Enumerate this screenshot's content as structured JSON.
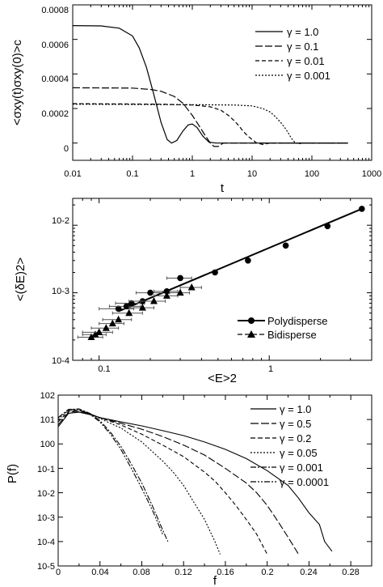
{
  "chart_data": [
    {
      "type": "line",
      "xlabel": "t",
      "ylabel": "<σxy(t)σxy(0)>c",
      "x_scale": "log",
      "xlim": [
        0.01,
        1000
      ],
      "ylim": [
        -0.0001,
        0.0008
      ],
      "x_ticks": [
        "0.01",
        "0.1",
        "1",
        "10",
        "100",
        "1000"
      ],
      "y_ticks": [
        "0",
        "0.0002",
        "0.0004",
        "0.0006",
        "0.0008"
      ],
      "y_tick_values": [
        0,
        0.0002,
        0.0004,
        0.0006,
        0.0008
      ],
      "legend_position": "top-right",
      "series": [
        {
          "name": "γ = 1.0",
          "dash": "solid",
          "x": [
            0.01,
            0.03,
            0.06,
            0.1,
            0.13,
            0.17,
            0.22,
            0.3,
            0.38,
            0.45,
            0.55,
            0.7,
            0.85,
            1.0,
            1.2,
            1.5,
            1.9,
            2.5,
            3.5,
            5,
            8,
            15,
            30,
            80,
            200,
            400
          ],
          "y": [
            0.00068,
            0.000678,
            0.000665,
            0.00062,
            0.00055,
            0.00044,
            0.0003,
            0.00012,
            2e-05,
            0.0,
            1.5e-05,
            7e-05,
            0.000105,
            0.00011,
            9e-05,
            4e-05,
            5e-06,
            0.0,
            0.0,
            0.0,
            0.0,
            0.0,
            0.0,
            0.0,
            0.0,
            0.0
          ]
        },
        {
          "name": "γ = 0.1",
          "dash": "longdash",
          "x": [
            0.01,
            0.1,
            0.2,
            0.3,
            0.5,
            0.7,
            1.0,
            1.3,
            1.6,
            2.0,
            2.3,
            2.7,
            3.3,
            4.5,
            7,
            15,
            50,
            400
          ],
          "y": [
            0.00032,
            0.000318,
            0.00031,
            0.0003,
            0.00027,
            0.00023,
            0.00016,
            0.0001,
            5e-05,
            0.0,
            -2e-05,
            -2e-05,
            0.0,
            0.0,
            0.0,
            0.0,
            0.0,
            0.0
          ]
        },
        {
          "name": "γ = 0.01",
          "dash": "dash",
          "x": [
            0.01,
            0.3,
            1,
            2,
            3,
            4,
            5,
            6,
            7,
            8.5,
            10,
            12,
            15,
            20,
            30,
            60,
            400
          ],
          "y": [
            0.000228,
            0.000225,
            0.00022,
            0.00021,
            0.00019,
            0.00016,
            0.00013,
            0.0001,
            7e-05,
            4e-05,
            2e-05,
            0.0,
            -8e-06,
            0.0,
            0.0,
            0.0,
            0.0
          ]
        },
        {
          "name": "γ = 0.001",
          "dash": "dot",
          "x": [
            0.01,
            1,
            5,
            10,
            15,
            20,
            25,
            30,
            35,
            40,
            45,
            50,
            55,
            60,
            70,
            80,
            100,
            200,
            400
          ],
          "y": [
            0.000225,
            0.000222,
            0.00022,
            0.000215,
            0.0002,
            0.00018,
            0.00015,
            0.00012,
            9e-05,
            6e-05,
            3e-05,
            1e-05,
            0.0,
            -5e-06,
            0.0,
            0.0,
            0.0,
            0.0,
            0.0
          ]
        }
      ]
    },
    {
      "type": "scatter",
      "xlabel": "<E>2",
      "ylabel": "<(δE)2>",
      "x_scale": "log",
      "y_scale": "log",
      "xlim": [
        0.07,
        4
      ],
      "ylim": [
        0.0001,
        0.025
      ],
      "x_ticks": [
        "0.1",
        "1"
      ],
      "y_ticks": [
        "10-4",
        "10-3",
        "10-2"
      ],
      "legend_position": "bottom-right",
      "fit_line": {
        "x": [
          0.13,
          3.5
        ],
        "y": [
          0.00053,
          0.0175
        ]
      },
      "series": [
        {
          "name": "Polydisperse",
          "marker": "circle",
          "x": [
            0.13,
            0.145,
            0.155,
            0.18,
            0.2,
            0.25,
            0.3,
            0.48,
            0.75,
            1.25,
            2.2,
            3.5
          ],
          "y": [
            0.00058,
            0.00063,
            0.0007,
            0.00075,
            0.001,
            0.00105,
            0.00165,
            0.002,
            0.003,
            0.005,
            0.0097,
            0.0175
          ],
          "xerr": [
            0.03,
            0.03,
            0.03,
            0.03,
            0.035,
            0.04,
            0.05,
            0,
            0,
            0,
            0,
            0
          ]
        },
        {
          "name": "Bidisperse",
          "marker": "triangle",
          "x": [
            0.09,
            0.095,
            0.1,
            0.11,
            0.12,
            0.13,
            0.15,
            0.18,
            0.21,
            0.25,
            0.3,
            0.35
          ],
          "y": [
            0.00022,
            0.00024,
            0.00026,
            0.0003,
            0.00035,
            0.0004,
            0.0005,
            0.0006,
            0.00075,
            0.0009,
            0.001,
            0.0012
          ],
          "xerr": [
            0.015,
            0.015,
            0.02,
            0.02,
            0.02,
            0.025,
            0.03,
            0.03,
            0.035,
            0.04,
            0.04,
            0.05
          ]
        }
      ]
    },
    {
      "type": "line",
      "xlabel": "f",
      "ylabel": "P(f)",
      "y_scale": "log",
      "xlim": [
        0,
        0.3
      ],
      "ylim": [
        1e-05,
        100
      ],
      "x_ticks": [
        "0",
        "0.04",
        "0.08",
        "0.12",
        "0.16",
        "0.2",
        "0.24",
        "0.28"
      ],
      "x_tick_values": [
        0,
        0.04,
        0.08,
        0.12,
        0.16,
        0.2,
        0.24,
        0.28
      ],
      "y_ticks": [
        "10-5",
        "10-4",
        "10-3",
        "10-2",
        "10-1",
        "100",
        "101",
        "102"
      ],
      "legend_position": "top-right",
      "series": [
        {
          "name": "γ = 1.0",
          "dash": "solid",
          "x": [
            0.0,
            0.01,
            0.02,
            0.03,
            0.04,
            0.06,
            0.08,
            0.1,
            0.12,
            0.14,
            0.16,
            0.18,
            0.2,
            0.22,
            0.23,
            0.24,
            0.25,
            0.255,
            0.262
          ],
          "y": [
            5,
            18,
            20,
            16,
            12,
            8,
            5.5,
            3.5,
            2.2,
            1.2,
            0.6,
            0.25,
            0.08,
            0.02,
            0.006,
            0.0015,
            0.0005,
            0.0001,
            4e-05
          ]
        },
        {
          "name": "γ = 0.5",
          "dash": "longdash",
          "x": [
            0.0,
            0.01,
            0.02,
            0.03,
            0.04,
            0.06,
            0.08,
            0.1,
            0.12,
            0.14,
            0.16,
            0.18,
            0.19,
            0.2,
            0.21,
            0.22,
            0.23
          ],
          "y": [
            6,
            20,
            22,
            17,
            12,
            7,
            4,
            2,
            0.9,
            0.35,
            0.1,
            0.025,
            0.01,
            0.003,
            0.0007,
            0.00015,
            3e-05
          ]
        },
        {
          "name": "γ = 0.2",
          "dash": "dash",
          "x": [
            0.0,
            0.01,
            0.02,
            0.03,
            0.04,
            0.06,
            0.08,
            0.1,
            0.12,
            0.14,
            0.15,
            0.16,
            0.17,
            0.18,
            0.19,
            0.2
          ],
          "y": [
            8,
            22,
            24,
            17,
            12,
            6,
            2.5,
            0.9,
            0.3,
            0.07,
            0.03,
            0.01,
            0.003,
            0.0008,
            0.0002,
            3e-05
          ]
        },
        {
          "name": "γ = 0.05",
          "dash": "dot",
          "x": [
            0.0,
            0.01,
            0.02,
            0.03,
            0.04,
            0.06,
            0.08,
            0.1,
            0.11,
            0.12,
            0.13,
            0.14,
            0.15,
            0.155
          ],
          "y": [
            10,
            24,
            26,
            18,
            11,
            4.5,
            1.2,
            0.2,
            0.07,
            0.02,
            0.004,
            0.0008,
            0.0001,
            3e-05
          ]
        },
        {
          "name": "γ = 0.001",
          "dash": "dashdot",
          "x": [
            0.0,
            0.01,
            0.02,
            0.03,
            0.04,
            0.05,
            0.06,
            0.07,
            0.08,
            0.09,
            0.1,
            0.105
          ],
          "y": [
            12,
            26,
            27,
            18,
            9,
            3,
            0.8,
            0.15,
            0.025,
            0.003,
            0.0003,
            0.0001
          ]
        },
        {
          "name": "γ = 0.0001",
          "dash": "dashdotdot",
          "x": [
            0.0,
            0.01,
            0.02,
            0.03,
            0.04,
            0.05,
            0.06,
            0.07,
            0.08,
            0.09,
            0.1
          ],
          "y": [
            12,
            25,
            26,
            17,
            8,
            2.5,
            0.6,
            0.1,
            0.015,
            0.002,
            0.0002
          ]
        }
      ]
    }
  ]
}
